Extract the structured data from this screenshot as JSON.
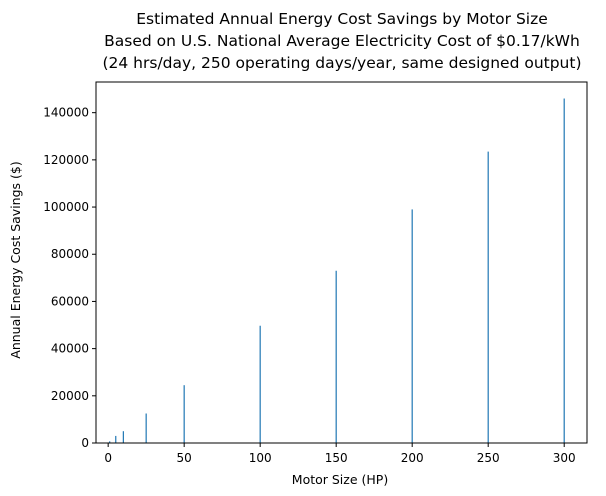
{
  "chart_data": {
    "type": "bar",
    "title_lines": [
      "Estimated Annual Energy Cost Savings by Motor Size",
      "Based on U.S. National Average Electricity Cost of $0.17/kWh",
      "(24 hrs/day, 250 operating days/year, same designed output)"
    ],
    "xlabel": "Motor Size (HP)",
    "ylabel": "Annual Energy Cost Savings ($)",
    "x": [
      1,
      5,
      10,
      25,
      50,
      100,
      150,
      200,
      250,
      300
    ],
    "values": [
      700,
      3000,
      5000,
      12500,
      24500,
      49700,
      73000,
      99000,
      123500,
      146000
    ],
    "xlim": [
      -8,
      315
    ],
    "ylim": [
      0,
      153000
    ],
    "xticks": [
      0,
      50,
      100,
      150,
      200,
      250,
      300
    ],
    "yticks": [
      0,
      20000,
      40000,
      60000,
      80000,
      100000,
      120000,
      140000
    ],
    "bar_color": "#1f77b4",
    "grid": false
  }
}
